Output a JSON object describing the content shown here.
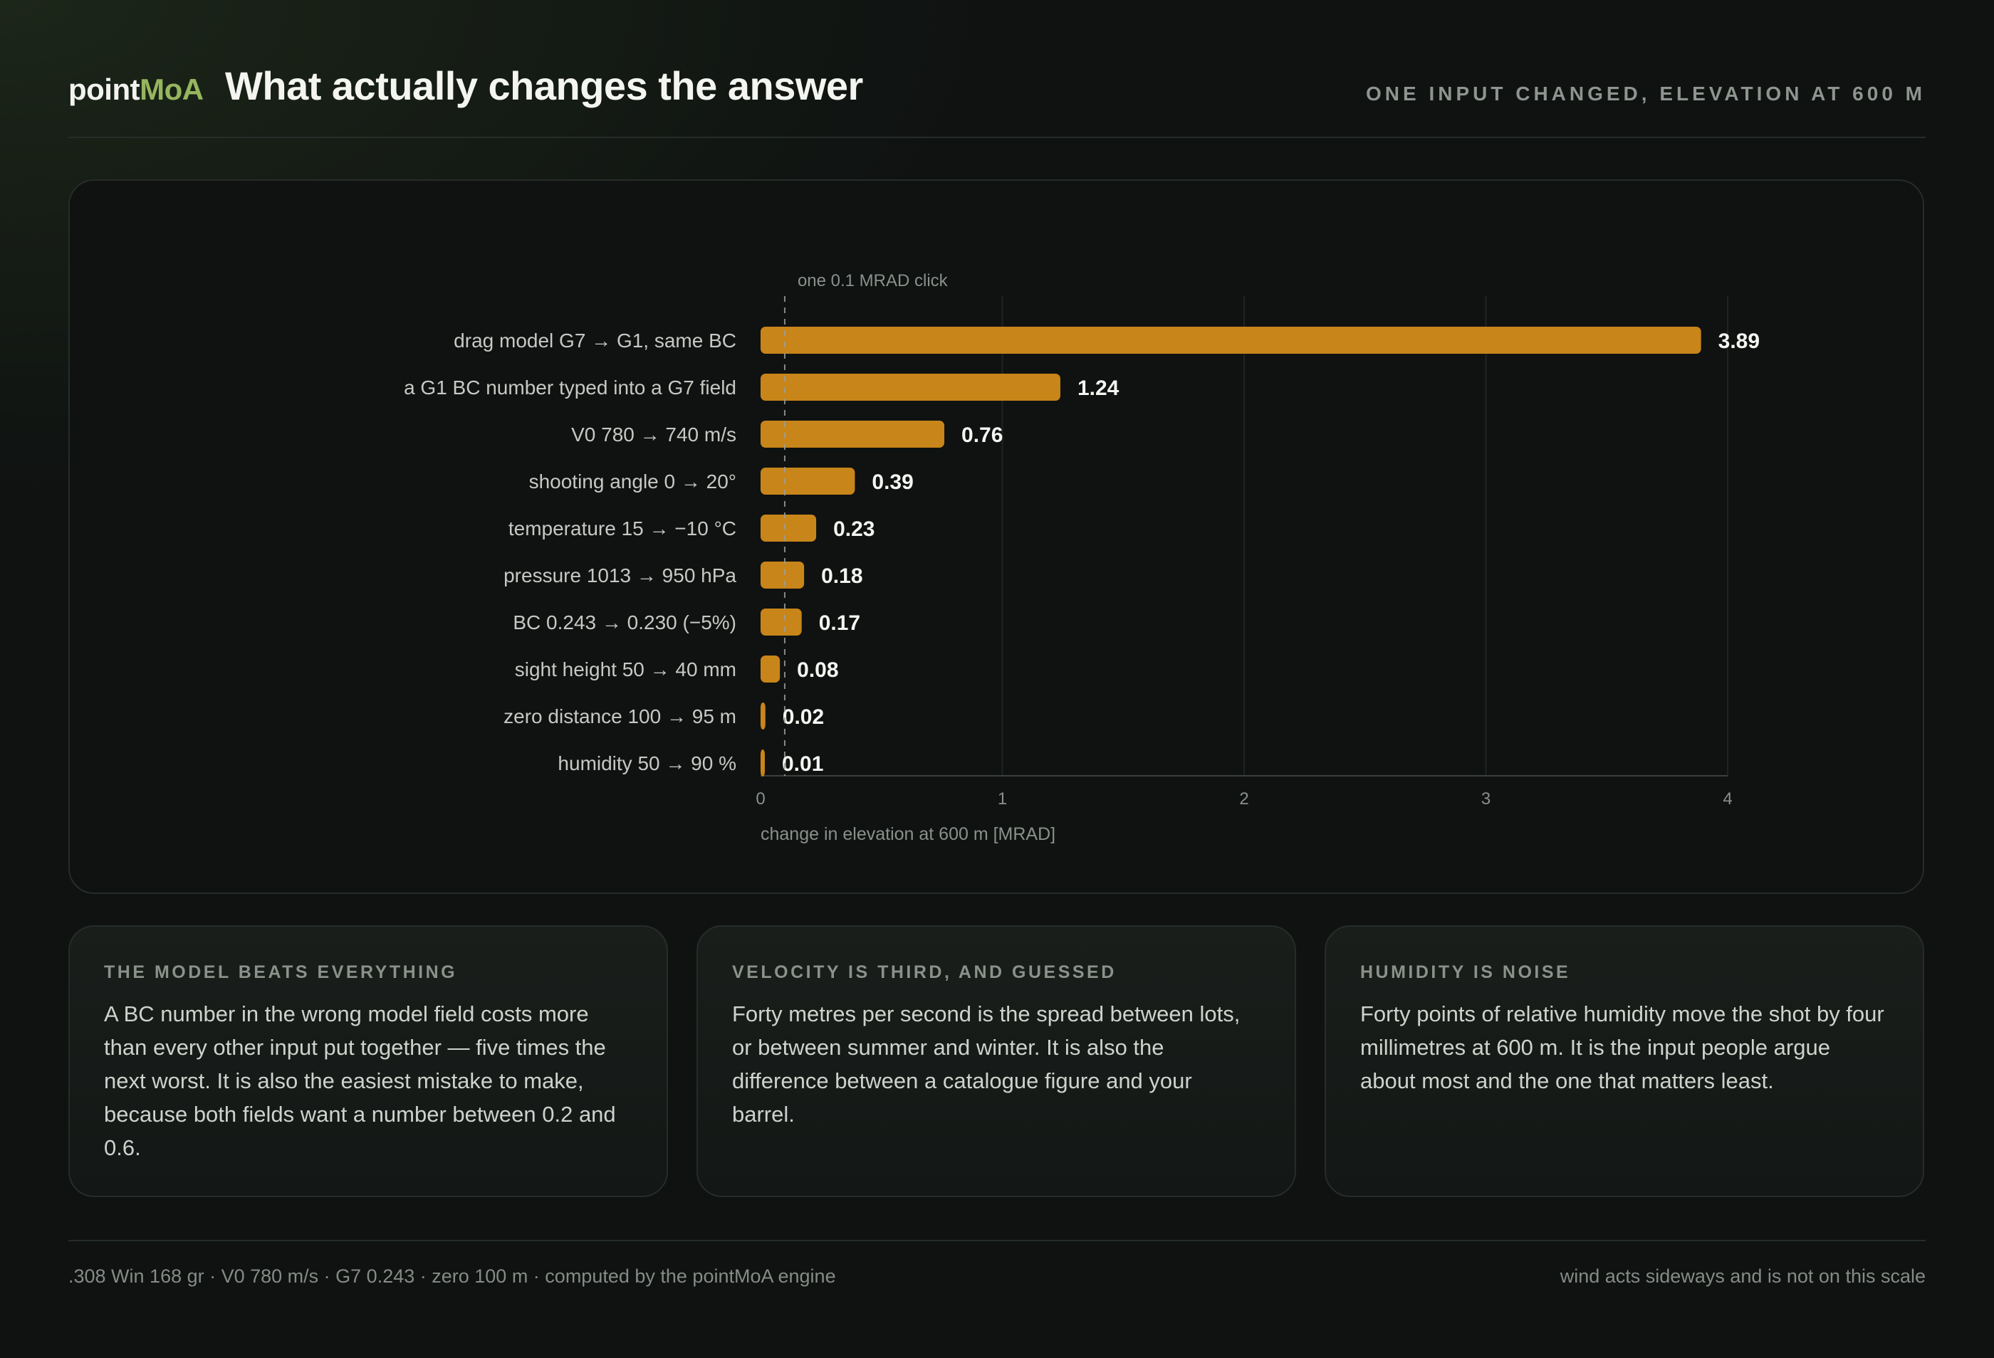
{
  "header": {
    "brand_part1": "point",
    "brand_part2": "MoA",
    "title": "What actually changes the answer",
    "subtitle": "ONE INPUT CHANGED, ELEVATION AT 600 M"
  },
  "chart_data": {
    "type": "bar",
    "orientation": "horizontal",
    "categories": [
      "drag model G7 → G1, same BC",
      "a G1 BC number typed into a G7 field",
      "V0 780 → 740 m/s",
      "shooting angle 0 → 20°",
      "temperature 15 → −10 °C",
      "pressure 1013 → 950 hPa",
      "BC 0.243 → 0.230 (−5%)",
      "sight height 50 → 40 mm",
      "zero distance 100 → 95 m",
      "humidity 50 → 90 %"
    ],
    "values": [
      3.89,
      1.24,
      0.76,
      0.39,
      0.23,
      0.18,
      0.17,
      0.08,
      0.02,
      0.01
    ],
    "value_labels": [
      "3.89",
      "1.24",
      "0.76",
      "0.39",
      "0.23",
      "0.18",
      "0.17",
      "0.08",
      "0.02",
      "0.01"
    ],
    "xlabel": "change in elevation at 600 m [MRAD]",
    "xlim": [
      0,
      4
    ],
    "xticks": [
      0,
      1,
      2,
      3,
      4
    ],
    "reference_line": {
      "value": 0.1,
      "label": "one 0.1 MRAD click"
    },
    "grid": "vertical",
    "bar_color": "#c8851a"
  },
  "cards": [
    {
      "title": "THE MODEL BEATS EVERYTHING",
      "body": "A BC number in the wrong model field costs more than every other input put together — five times the next worst. It is also the easiest mistake to make, because both fields want a number between 0.2 and 0.6."
    },
    {
      "title": "VELOCITY IS THIRD, AND GUESSED",
      "body": "Forty metres per second is the spread between lots, or between summer and winter. It is also the difference between a catalogue figure and your barrel."
    },
    {
      "title": "HUMIDITY IS NOISE",
      "body": "Forty points of relative humidity move the shot by four millimetres at 600 m. It is the input people argue about most and the one that matters least."
    }
  ],
  "footer": {
    "left": ".308 Win 168 gr · V0 780 m/s · G7 0.243 · zero 100 m · computed by the pointMoA engine",
    "right": "wind acts sideways and is not on this scale"
  },
  "colors": {
    "accent": "#95b55e",
    "bar": "#c8851a",
    "background": "#0f1211"
  }
}
